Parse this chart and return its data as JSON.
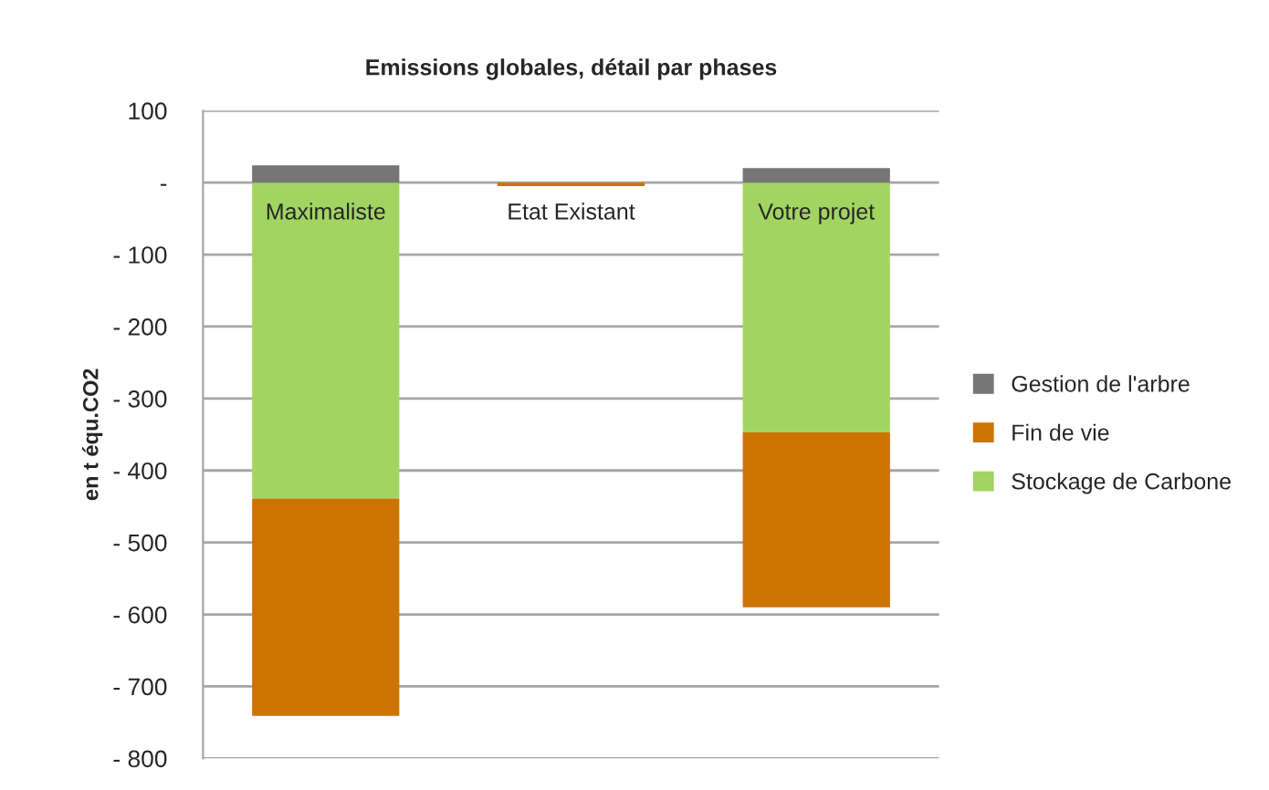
{
  "chart_data": {
    "type": "bar",
    "stacked": true,
    "title": "Emissions globales, détail par phases",
    "ylabel": "en t équ.CO2",
    "categories": [
      "Maximaliste",
      "Etat Existant",
      "Votre projet"
    ],
    "series": [
      {
        "name": "Stockage de Carbone",
        "color": "#a2d462",
        "values": [
          -439,
          null,
          -347
        ]
      },
      {
        "name": "Fin de vie",
        "color": "#cc7300",
        "values": [
          -302,
          -5,
          -243
        ]
      },
      {
        "name": "Gestion de l'arbre",
        "color": "#767676",
        "values": [
          24,
          null,
          20
        ]
      }
    ],
    "ylim": [
      -800,
      100
    ],
    "yticks": [
      100,
      {
        "value": 0,
        "label": "-"
      },
      {
        "value": -100,
        "label": "- 100"
      },
      {
        "value": -200,
        "label": "- 200"
      },
      {
        "value": -300,
        "label": "- 300"
      },
      {
        "value": -400,
        "label": "- 400"
      },
      {
        "value": -500,
        "label": "- 500"
      },
      {
        "value": -600,
        "label": "- 600"
      },
      {
        "value": -700,
        "label": "- 700"
      },
      {
        "value": -800,
        "label": "- 800"
      }
    ],
    "grid": "y",
    "legend": "right"
  }
}
